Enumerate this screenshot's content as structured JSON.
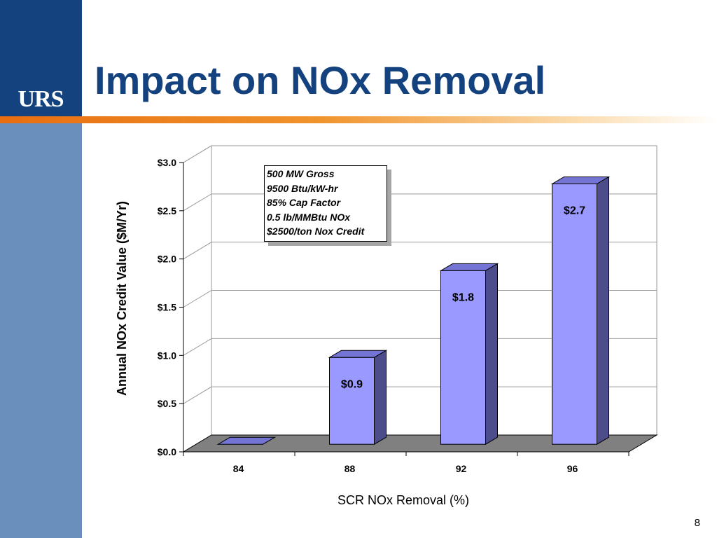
{
  "slide": {
    "title": "Impact on NOx Removal",
    "logo_text": "URS",
    "page_number": "8"
  },
  "colors": {
    "sidebar_dark": "#13427f",
    "sidebar_light": "#6b8fbd",
    "accent_orange": "#e86e10",
    "bar_front": "#9999ff",
    "bar_side": "#4d4d8c",
    "bar_top": "#7474d4",
    "floor": "#808080"
  },
  "info_box": {
    "lines": [
      "500 MW Gross",
      "9500 Btu/kW-hr",
      "85% Cap Factor",
      "0.5 lb/MMBtu NOx",
      "$2500/ton Nox Credit"
    ]
  },
  "chart_data": {
    "type": "bar",
    "title": "",
    "xlabel": "SCR NOx Removal (%)",
    "ylabel": "Annual NOx Credit Value ($M/Yr)",
    "categories": [
      "84",
      "88",
      "92",
      "96"
    ],
    "values": [
      0.0,
      0.9,
      1.8,
      2.7
    ],
    "data_labels": [
      "",
      "$0.9",
      "$1.8",
      "$2.7"
    ],
    "ylim": [
      0,
      3.0
    ],
    "y_ticks": [
      "$0.0",
      "$0.5",
      "$1.0",
      "$1.5",
      "$2.0",
      "$2.5",
      "$3.0"
    ],
    "grid": true,
    "three_d": true
  }
}
